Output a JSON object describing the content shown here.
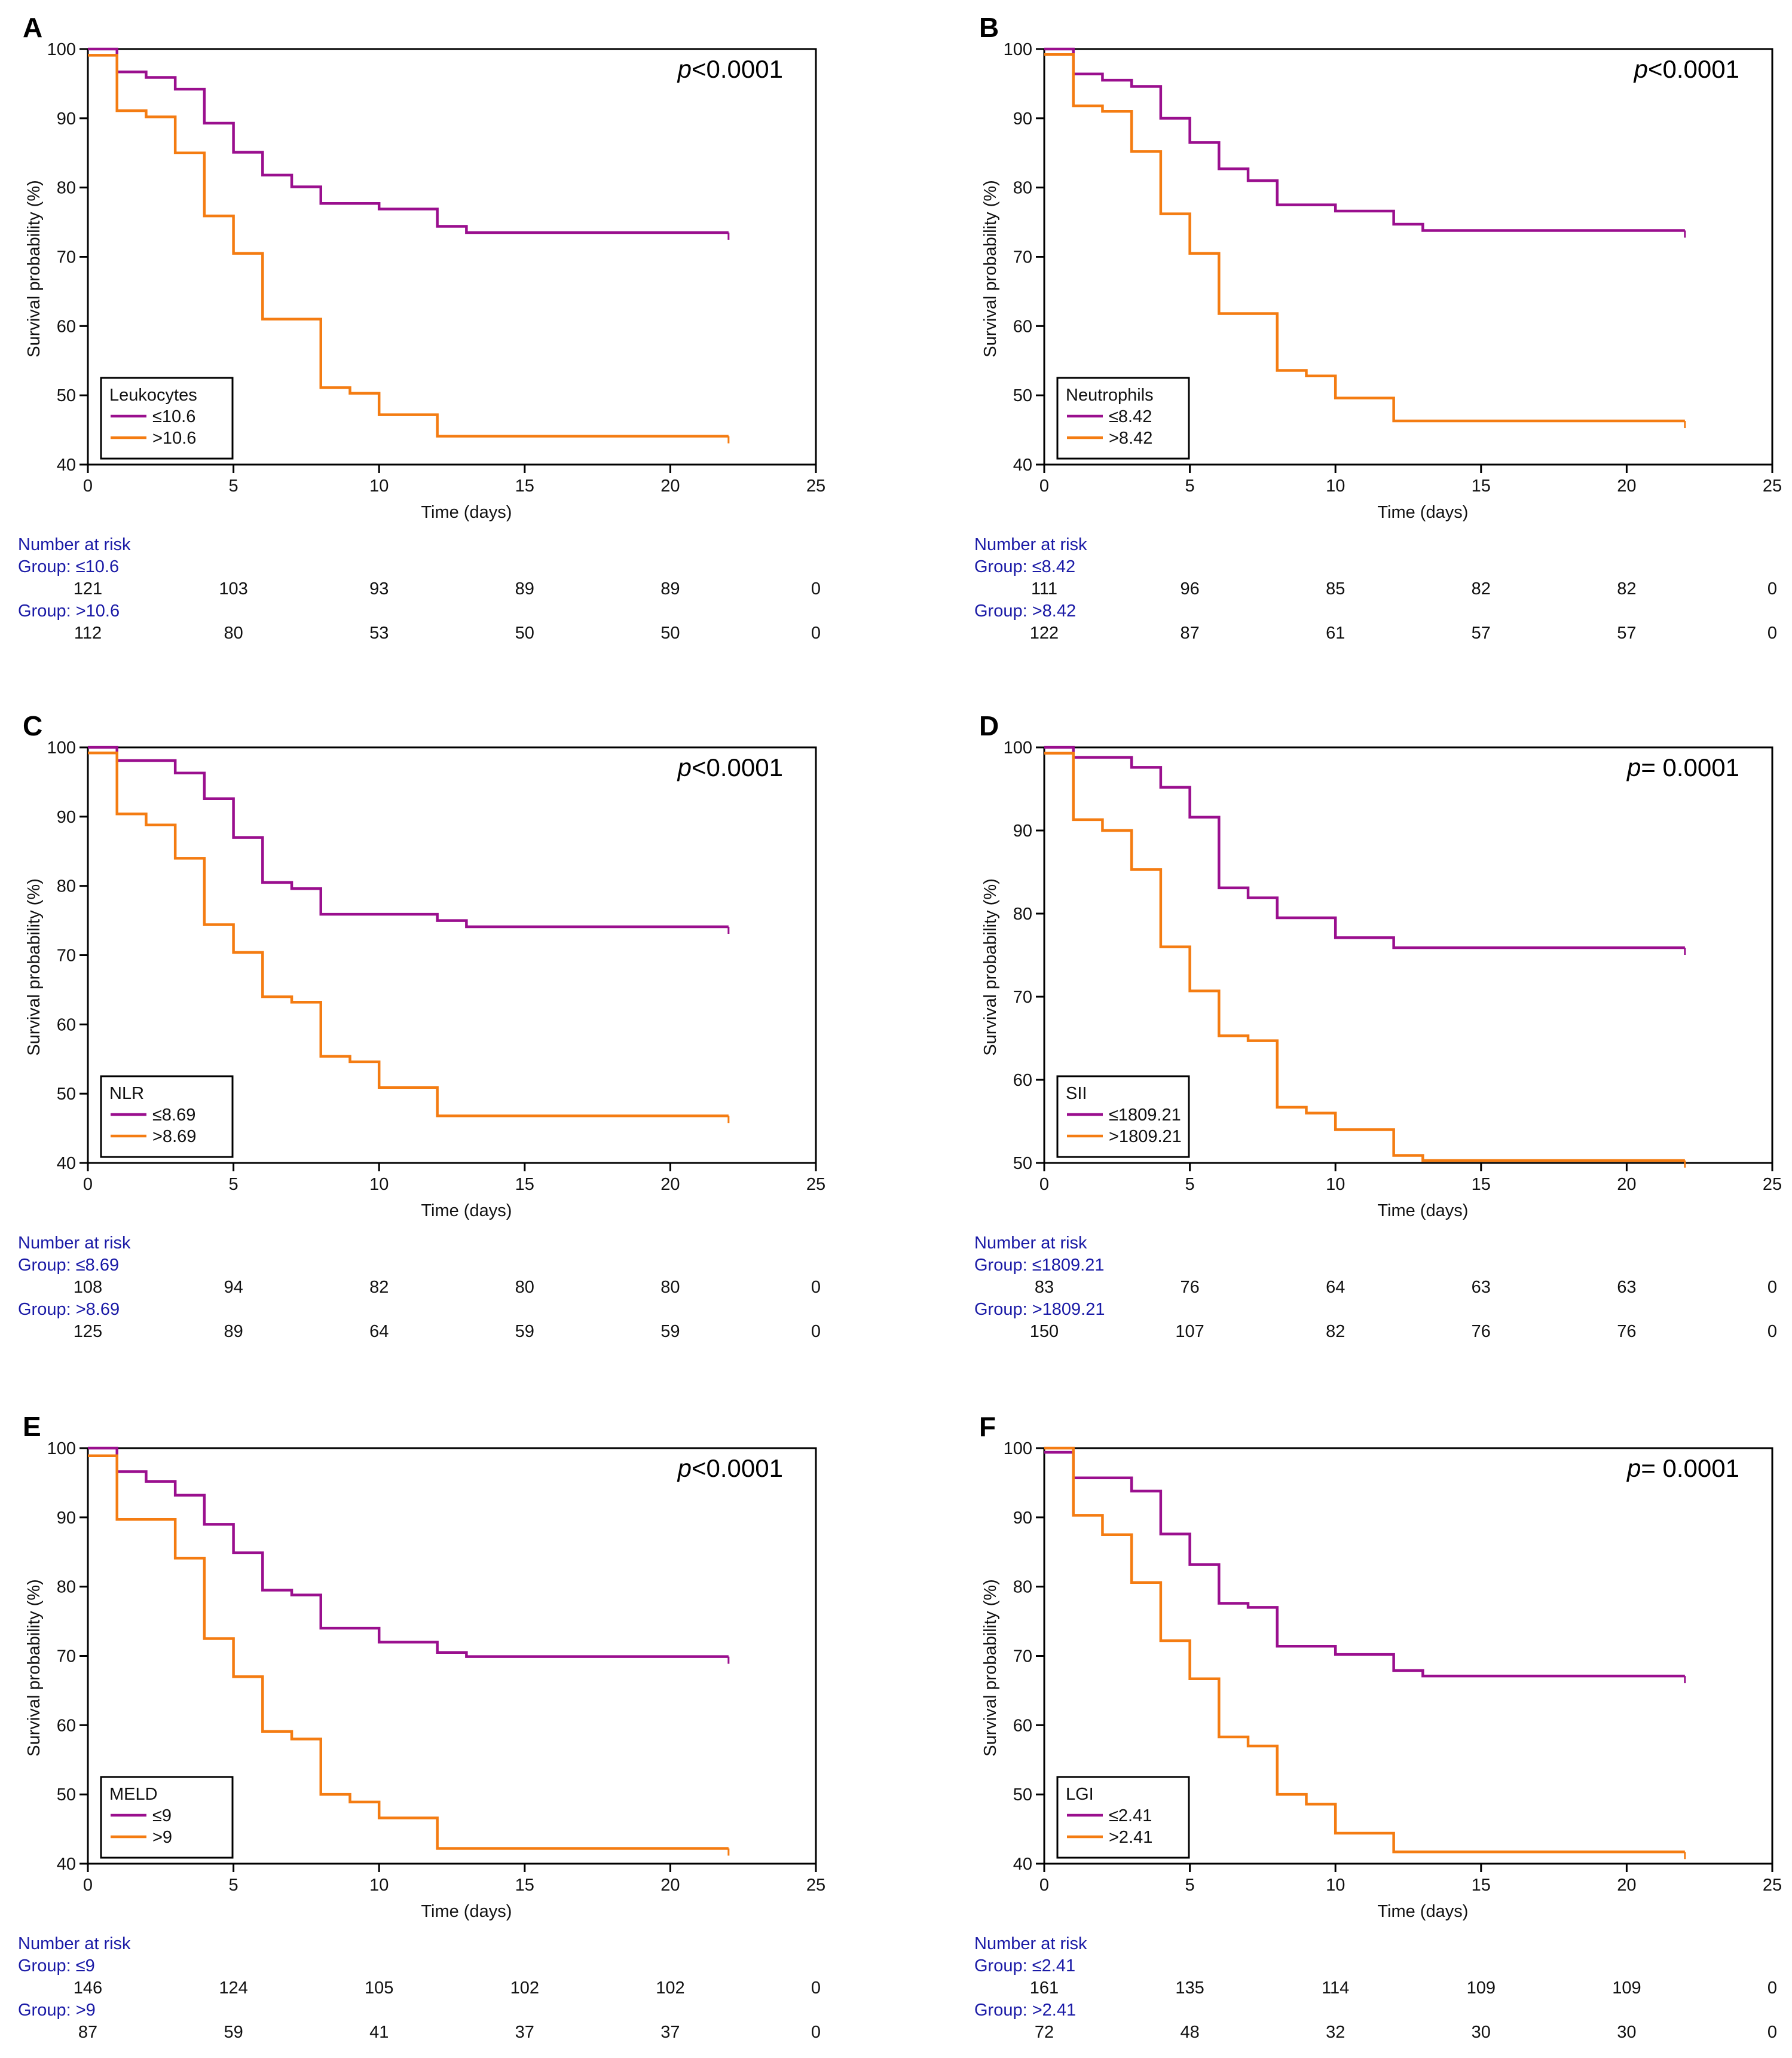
{
  "colors": {
    "low": "#9a0f8e",
    "high": "#f47c12",
    "risk_label": "#1a1aa6",
    "axis": "#000000",
    "text": "#111111"
  },
  "chart_data": [
    {
      "panel": "A",
      "type": "line",
      "step": true,
      "p_label": "p",
      "p_value": "<0.0001",
      "xlabel": "Time (days)",
      "ylabel": "Survival probability (%)",
      "xlim": [
        0,
        25
      ],
      "ylim": [
        40,
        100
      ],
      "xticks": [
        0,
        5,
        10,
        15,
        20,
        25
      ],
      "yticks": [
        40,
        50,
        60,
        70,
        80,
        90,
        100
      ],
      "legend_title": "Leukocytes",
      "series": [
        {
          "name": "≤10.6",
          "group": "low",
          "x": [
            0,
            1,
            2,
            3,
            4,
            5,
            6,
            7,
            8,
            10,
            12,
            13,
            22
          ],
          "y": [
            100,
            96.7,
            95.9,
            94.2,
            89.3,
            85.1,
            81.8,
            80.1,
            77.7,
            76.9,
            74.4,
            73.5,
            73.5
          ]
        },
        {
          "name": ">10.6",
          "group": "high",
          "x": [
            0,
            1,
            2,
            3,
            4,
            5,
            6,
            8,
            9,
            10,
            12,
            22
          ],
          "y": [
            99.1,
            91.1,
            90.2,
            85,
            75.9,
            70.5,
            61,
            51.1,
            50.3,
            47.2,
            44.1,
            44.1
          ]
        }
      ],
      "risk": {
        "heading": "Number at risk",
        "groups": [
          {
            "label": "Group: ≤10.6",
            "counts": [
              "121",
              "103",
              "93",
              "89",
              "89",
              "0"
            ]
          },
          {
            "label": "Group: >10.6",
            "counts": [
              "112",
              "80",
              "53",
              "50",
              "50",
              "0"
            ]
          }
        ]
      }
    },
    {
      "panel": "B",
      "type": "line",
      "step": true,
      "p_label": "p",
      "p_value": "<0.0001",
      "xlabel": "Time (days)",
      "ylabel": "Survival probability (%)",
      "xlim": [
        0,
        25
      ],
      "ylim": [
        40,
        100
      ],
      "xticks": [
        0,
        5,
        10,
        15,
        20,
        25
      ],
      "yticks": [
        40,
        50,
        60,
        70,
        80,
        90,
        100
      ],
      "legend_title": "Neutrophils",
      "series": [
        {
          "name": "≤8.42",
          "group": "low",
          "x": [
            0,
            1,
            2,
            3,
            4,
            5,
            6,
            7,
            8,
            10,
            12,
            13,
            22
          ],
          "y": [
            100,
            96.4,
            95.5,
            94.6,
            90,
            86.5,
            82.7,
            81,
            77.5,
            76.6,
            74.7,
            73.8,
            73.8
          ]
        },
        {
          "name": ">8.42",
          "group": "high",
          "x": [
            0,
            1,
            2,
            3,
            4,
            5,
            6,
            8,
            9,
            10,
            12,
            22
          ],
          "y": [
            99.2,
            91.8,
            91,
            85.2,
            76.2,
            70.5,
            61.8,
            53.6,
            52.8,
            49.6,
            46.3,
            46.3
          ]
        }
      ],
      "risk": {
        "heading": "Number at risk",
        "groups": [
          {
            "label": "Group: ≤8.42",
            "counts": [
              "111",
              "96",
              "85",
              "82",
              "82",
              "0"
            ]
          },
          {
            "label": "Group: >8.42",
            "counts": [
              "122",
              "87",
              "61",
              "57",
              "57",
              "0"
            ]
          }
        ]
      }
    },
    {
      "panel": "C",
      "type": "line",
      "step": true,
      "p_label": "p",
      "p_value": "<0.0001",
      "xlabel": "Time (days)",
      "ylabel": "Survival probability (%)",
      "xlim": [
        0,
        25
      ],
      "ylim": [
        40,
        100
      ],
      "xticks": [
        0,
        5,
        10,
        15,
        20,
        25
      ],
      "yticks": [
        40,
        50,
        60,
        70,
        80,
        90,
        100
      ],
      "legend_title": "NLR",
      "series": [
        {
          "name": "≤8.69",
          "group": "low",
          "x": [
            0,
            1,
            3,
            4,
            5,
            6,
            7,
            8,
            12,
            13,
            22
          ],
          "y": [
            100,
            98.1,
            96.3,
            92.6,
            87,
            80.5,
            79.6,
            75.9,
            75,
            74.1,
            74.1
          ]
        },
        {
          "name": ">8.69",
          "group": "high",
          "x": [
            0,
            1,
            2,
            3,
            4,
            5,
            6,
            7,
            8,
            9,
            10,
            12,
            22
          ],
          "y": [
            99.2,
            90.4,
            88.8,
            84,
            74.4,
            70.4,
            64,
            63.2,
            55.4,
            54.6,
            50.9,
            46.8,
            46.8
          ]
        }
      ],
      "risk": {
        "heading": "Number at risk",
        "groups": [
          {
            "label": "Group: ≤8.69",
            "counts": [
              "108",
              "94",
              "82",
              "80",
              "80",
              "0"
            ]
          },
          {
            "label": "Group: >8.69",
            "counts": [
              "125",
              "89",
              "64",
              "59",
              "59",
              "0"
            ]
          }
        ]
      }
    },
    {
      "panel": "D",
      "type": "line",
      "step": true,
      "p_label": "p",
      "p_value": "= 0.0001",
      "xlabel": "Time (days)",
      "ylabel": "Survival probability (%)",
      "xlim": [
        0,
        25
      ],
      "ylim": [
        50,
        100
      ],
      "xticks": [
        0,
        5,
        10,
        15,
        20,
        25
      ],
      "yticks": [
        50,
        60,
        70,
        80,
        90,
        100
      ],
      "legend_title": "SII",
      "series": [
        {
          "name": "≤1809.21",
          "group": "low",
          "x": [
            0,
            1,
            3,
            4,
            5,
            6,
            7,
            8,
            10,
            12,
            22
          ],
          "y": [
            100,
            98.8,
            97.6,
            95.2,
            91.6,
            83.1,
            81.9,
            79.5,
            77.1,
            75.9,
            75.9
          ]
        },
        {
          "name": ">1809.21",
          "group": "high",
          "x": [
            0,
            1,
            2,
            3,
            4,
            5,
            6,
            7,
            8,
            9,
            10,
            12,
            13,
            22
          ],
          "y": [
            99.3,
            91.3,
            90,
            85.3,
            76,
            70.7,
            65.3,
            64.7,
            56.7,
            56,
            54,
            50.9,
            50.3,
            50.3
          ]
        }
      ],
      "risk": {
        "heading": "Number at risk",
        "groups": [
          {
            "label": "Group: ≤1809.21",
            "counts": [
              "83",
              "76",
              "64",
              "63",
              "63",
              "0"
            ]
          },
          {
            "label": "Group: >1809.21",
            "counts": [
              "150",
              "107",
              "82",
              "76",
              "76",
              "0"
            ]
          }
        ]
      }
    },
    {
      "panel": "E",
      "type": "line",
      "step": true,
      "p_label": "p",
      "p_value": "<0.0001",
      "xlabel": "Time (days)",
      "ylabel": "Survival probability (%)",
      "xlim": [
        0,
        25
      ],
      "ylim": [
        40,
        100
      ],
      "xticks": [
        0,
        5,
        10,
        15,
        20,
        25
      ],
      "yticks": [
        40,
        50,
        60,
        70,
        80,
        90,
        100
      ],
      "legend_title": "MELD",
      "series": [
        {
          "name": "≤9",
          "group": "low",
          "x": [
            0,
            1,
            2,
            3,
            4,
            5,
            6,
            7,
            8,
            10,
            12,
            13,
            22
          ],
          "y": [
            100,
            96.6,
            95.2,
            93.2,
            89,
            84.9,
            79.5,
            78.8,
            74,
            72,
            70.5,
            69.9,
            69.9
          ]
        },
        {
          "name": ">9",
          "group": "high",
          "x": [
            0,
            1,
            3,
            4,
            5,
            6,
            7,
            8,
            9,
            10,
            12,
            22
          ],
          "y": [
            98.9,
            89.7,
            84.1,
            72.5,
            67,
            59.1,
            58,
            50,
            48.9,
            46.6,
            42.2,
            42.2
          ]
        }
      ],
      "risk": {
        "heading": "Number at risk",
        "groups": [
          {
            "label": "Group: ≤9",
            "counts": [
              "146",
              "124",
              "105",
              "102",
              "102",
              "0"
            ]
          },
          {
            "label": "Group: >9",
            "counts": [
              "87",
              "59",
              "41",
              "37",
              "37",
              "0"
            ]
          }
        ]
      }
    },
    {
      "panel": "F",
      "type": "line",
      "step": true,
      "p_label": "p",
      "p_value": "= 0.0001",
      "xlabel": "Time (days)",
      "ylabel": "Survival probability (%)",
      "xlim": [
        0,
        25
      ],
      "ylim": [
        40,
        100
      ],
      "xticks": [
        0,
        5,
        10,
        15,
        20,
        25
      ],
      "yticks": [
        40,
        50,
        60,
        70,
        80,
        90,
        100
      ],
      "legend_title": "LGI",
      "series": [
        {
          "name": "≤2.41",
          "group": "low",
          "x": [
            0,
            1,
            3,
            4,
            5,
            6,
            7,
            8,
            10,
            12,
            13,
            22
          ],
          "y": [
            99.4,
            95.7,
            93.8,
            87.6,
            83.2,
            77.6,
            77,
            71.4,
            70.2,
            67.9,
            67.1,
            67.1
          ]
        },
        {
          "name": ">2.41",
          "group": "high",
          "x": [
            0,
            1,
            2,
            3,
            4,
            5,
            6,
            7,
            8,
            9,
            10,
            12,
            22
          ],
          "y": [
            100,
            90.3,
            87.5,
            80.6,
            72.2,
            66.7,
            58.3,
            57,
            50,
            48.6,
            44.4,
            41.7,
            41.7
          ]
        }
      ],
      "risk": {
        "heading": "Number at risk",
        "groups": [
          {
            "label": "Group: ≤2.41",
            "counts": [
              "161",
              "135",
              "114",
              "109",
              "109",
              "0"
            ]
          },
          {
            "label": "Group: >2.41",
            "counts": [
              "72",
              "48",
              "32",
              "30",
              "30",
              "0"
            ]
          }
        ]
      }
    }
  ]
}
